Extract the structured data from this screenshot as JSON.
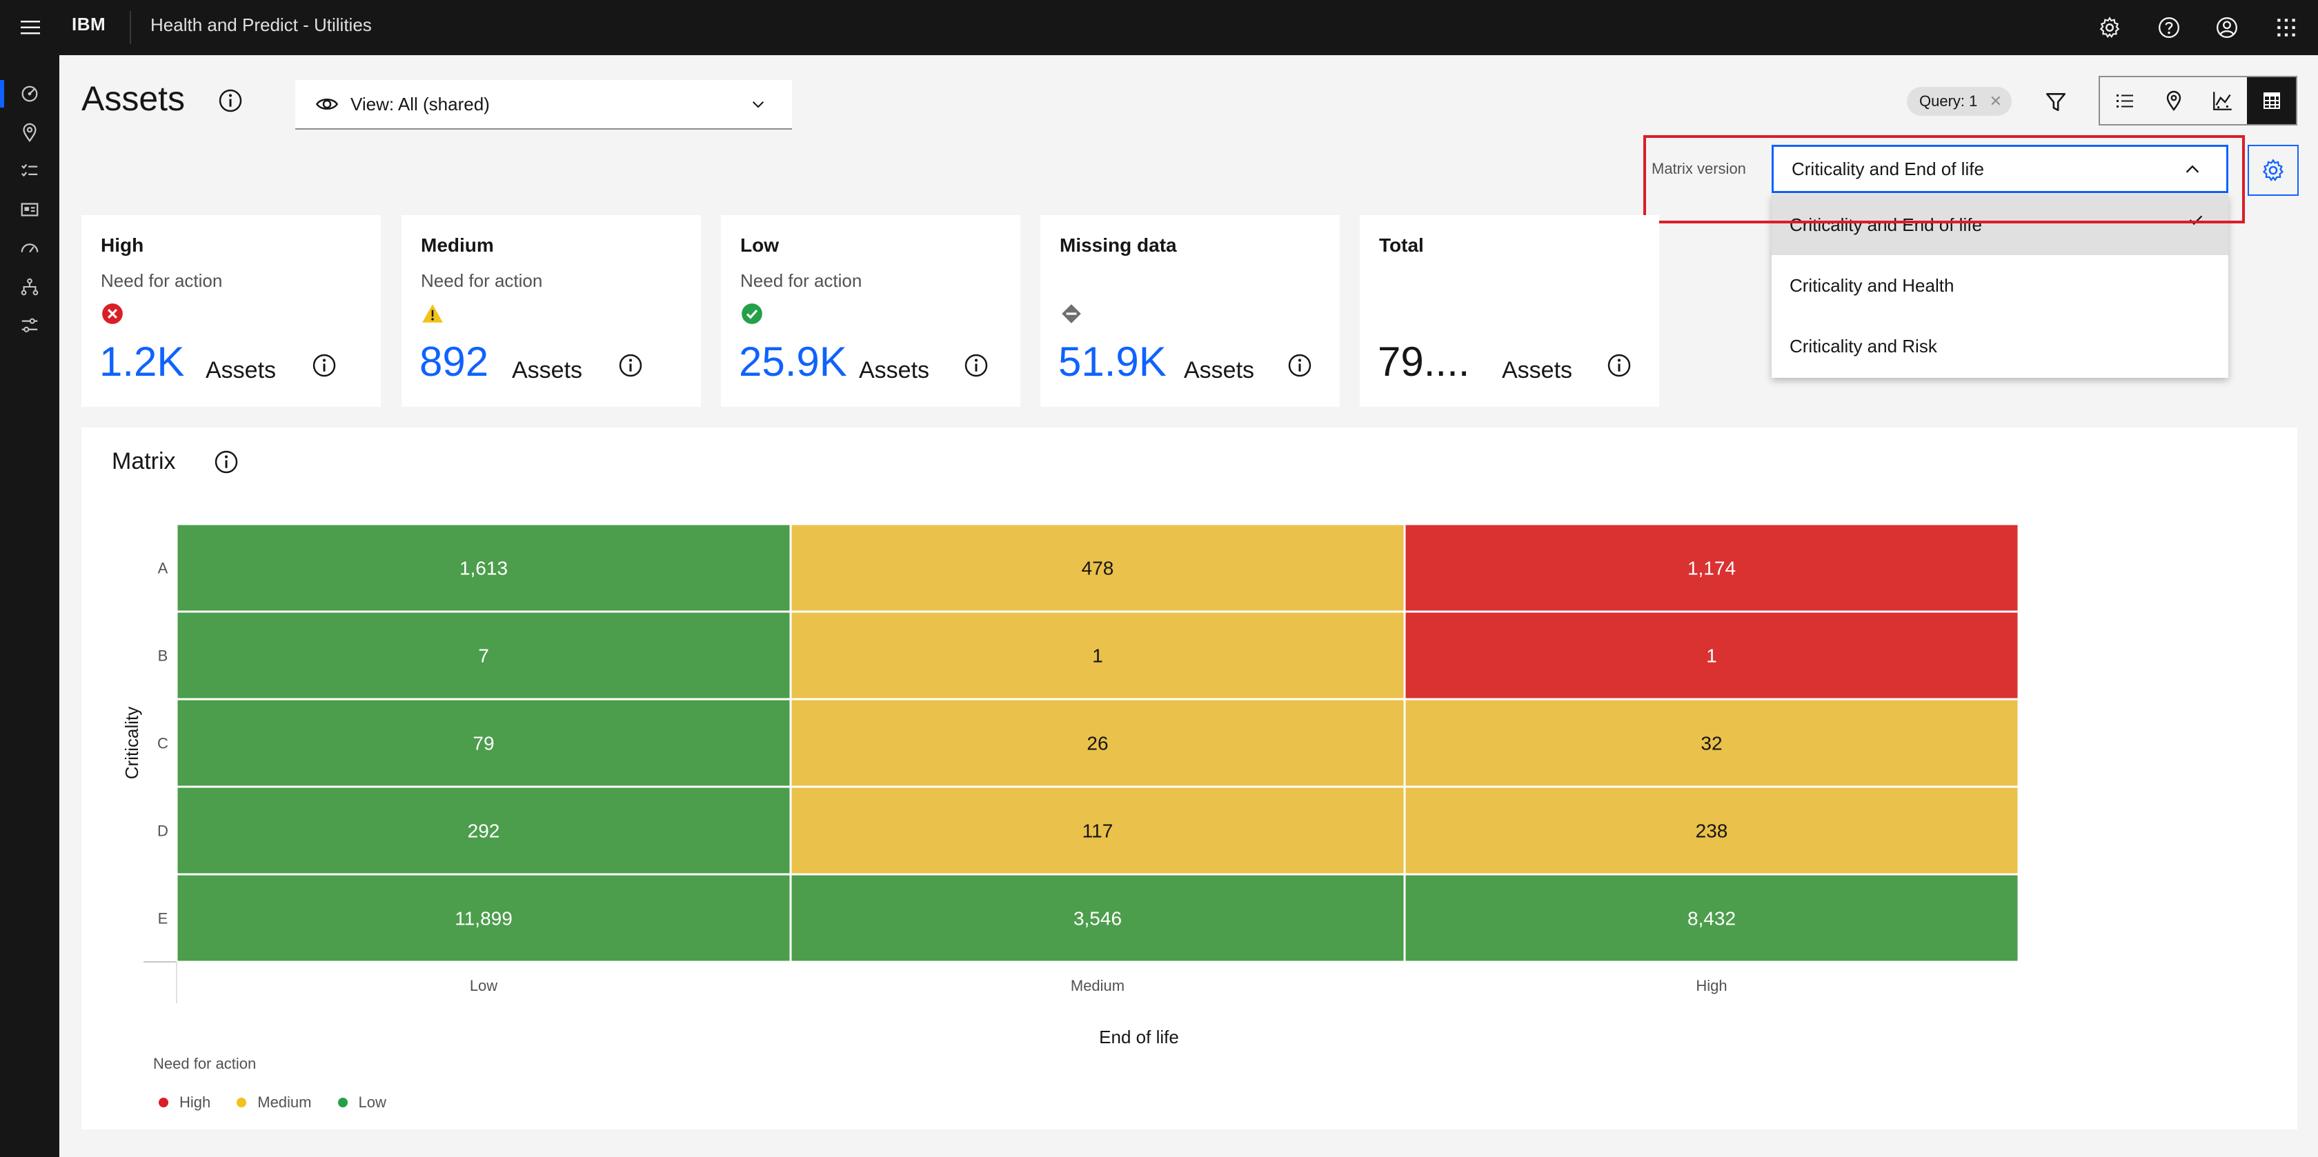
{
  "topbar": {
    "brand": "IBM",
    "app_title": "Health and Predict - Utilities",
    "icons": [
      "settings-icon",
      "help-icon",
      "user-icon",
      "app-switcher-icon"
    ]
  },
  "sidebar": {
    "items": [
      "dashboard-icon",
      "location-icon",
      "checklist-icon",
      "asset-card-icon",
      "gauge-icon",
      "hierarchy-icon",
      "sliders-icon"
    ]
  },
  "header": {
    "title": "Assets",
    "view_label": "View: All (shared)",
    "query_tag": "Query: 1"
  },
  "matrix_version": {
    "label": "Matrix version",
    "selected": "Criticality and End of life",
    "options": [
      "Criticality and End of life",
      "Criticality and Health",
      "Criticality and Risk"
    ]
  },
  "cards": [
    {
      "title": "High",
      "subtitle": "Need for action",
      "value": "1.2K",
      "unit": "Assets",
      "status": "high"
    },
    {
      "title": "Medium",
      "subtitle": "Need for action",
      "value": "892",
      "unit": "Assets",
      "status": "medium"
    },
    {
      "title": "Low",
      "subtitle": "Need for action",
      "value": "25.9K",
      "unit": "Assets",
      "status": "low"
    },
    {
      "title": "Missing data",
      "subtitle": "",
      "value": "51.9K",
      "unit": "Assets",
      "status": "missing"
    },
    {
      "title": "Total",
      "subtitle": "",
      "value": "79....",
      "unit": "Assets",
      "status": "total"
    }
  ],
  "colors": {
    "high": "#da3131",
    "medium": "#eac14a",
    "low": "#4c9d4c",
    "accent": "#0f62fe"
  },
  "matrix": {
    "title": "Matrix"
  },
  "chart_data": {
    "type": "heatmap",
    "title": "",
    "xlabel": "End of life",
    "ylabel": "Criticality",
    "x": [
      "Low",
      "Medium",
      "High"
    ],
    "y": [
      "A",
      "B",
      "C",
      "D",
      "E"
    ],
    "values": [
      [
        1613,
        478,
        1174
      ],
      [
        7,
        1,
        1
      ],
      [
        79,
        26,
        32
      ],
      [
        292,
        117,
        238
      ],
      [
        11899,
        3546,
        8432
      ]
    ],
    "labels": [
      [
        "1,613",
        "478",
        "1,174"
      ],
      [
        "7",
        "1",
        "1"
      ],
      [
        "79",
        "26",
        "32"
      ],
      [
        "292",
        "117",
        "238"
      ],
      [
        "11,899",
        "3,546",
        "8,432"
      ]
    ],
    "levels": [
      [
        "low",
        "medium",
        "high"
      ],
      [
        "low",
        "medium",
        "high"
      ],
      [
        "low",
        "medium",
        "medium"
      ],
      [
        "low",
        "medium",
        "medium"
      ],
      [
        "low",
        "low",
        "low"
      ]
    ],
    "legend": {
      "title": "Need for action",
      "items": [
        {
          "name": "High",
          "color": "#da3131"
        },
        {
          "name": "Medium",
          "color": "#eac14a"
        },
        {
          "name": "Low",
          "color": "#4c9d4c"
        }
      ]
    }
  }
}
